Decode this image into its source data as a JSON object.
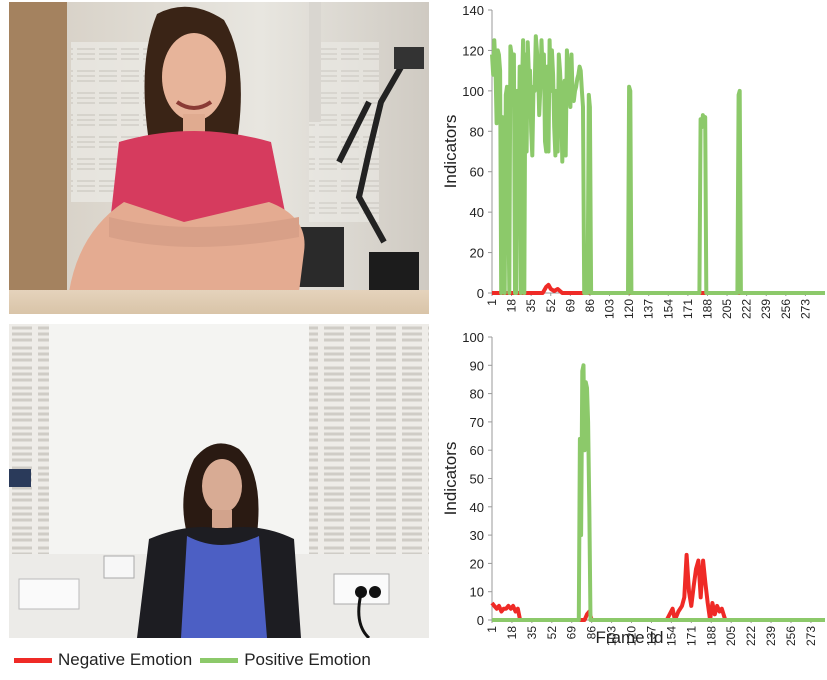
{
  "legend": {
    "negative_label": "Negative Emotion",
    "positive_label": "Positive Emotion",
    "negative_color": "#ef2a26",
    "positive_color": "#8cc96a"
  },
  "photos": [
    {
      "subject": "smiling woman in pink top, arms crossed at table"
    },
    {
      "subject": "woman in dark cardigan seated against white acoustic wall"
    }
  ],
  "chart_data": [
    {
      "type": "line",
      "title": "",
      "xlabel": "",
      "ylabel": "Indicators",
      "ylim": [
        0,
        140
      ],
      "yticks": [
        0,
        20,
        40,
        60,
        80,
        100,
        120,
        140
      ],
      "xlim": [
        1,
        290
      ],
      "xticks": [
        "1",
        "18",
        "35",
        "52",
        "69",
        "86",
        "103",
        "120",
        "137",
        "154",
        "171",
        "188",
        "205",
        "222",
        "239",
        "256",
        "273"
      ],
      "grid": false,
      "series": [
        {
          "name": "Negative Emotion",
          "color": "#ef2a26",
          "x": [
            1,
            45,
            48,
            50,
            52,
            55,
            58,
            62,
            65,
            100,
            103,
            290
          ],
          "y": [
            0,
            0,
            3,
            4,
            2,
            1,
            2,
            0,
            0,
            0,
            0,
            0
          ]
        },
        {
          "name": "Positive Emotion",
          "color": "#8cc96a",
          "x": [
            1,
            2,
            3,
            4,
            5,
            6,
            7,
            8,
            9,
            10,
            11,
            12,
            13,
            14,
            15,
            16,
            17,
            18,
            19,
            20,
            21,
            22,
            23,
            24,
            25,
            26,
            27,
            28,
            29,
            30,
            31,
            32,
            33,
            34,
            35,
            36,
            37,
            38,
            39,
            40,
            41,
            42,
            43,
            44,
            45,
            46,
            47,
            48,
            49,
            50,
            51,
            52,
            53,
            54,
            55,
            56,
            57,
            58,
            59,
            60,
            61,
            62,
            63,
            64,
            65,
            66,
            67,
            68,
            69,
            70,
            71,
            72,
            73,
            74,
            75,
            76,
            77,
            78,
            79,
            80,
            81,
            82,
            83,
            84,
            85,
            86,
            87,
            88,
            89,
            90,
            91,
            92,
            93,
            94,
            95,
            96,
            97,
            98,
            99,
            100,
            101,
            102,
            103,
            104,
            105,
            106,
            107,
            108,
            109,
            110,
            111,
            112,
            113,
            114,
            115,
            116,
            117,
            118,
            119,
            120,
            121,
            122,
            123,
            124,
            125,
            180,
            181,
            182,
            183,
            184,
            185,
            186,
            187,
            188,
            189,
            190,
            214,
            215,
            216,
            217,
            218,
            219,
            290
          ],
          "y": [
            118,
            108,
            125,
            112,
            84,
            120,
            118,
            110,
            0,
            87,
            80,
            0,
            98,
            102,
            60,
            0,
            122,
            118,
            100,
            118,
            0,
            0,
            100,
            60,
            112,
            0,
            102,
            125,
            0,
            118,
            70,
            124,
            108,
            110,
            80,
            68,
            102,
            100,
            127,
            120,
            110,
            88,
            102,
            125,
            108,
            118,
            75,
            70,
            112,
            70,
            125,
            100,
            120,
            108,
            82,
            68,
            100,
            70,
            118,
            110,
            98,
            65,
            100,
            105,
            68,
            120,
            112,
            100,
            92,
            118,
            96,
            95,
            100,
            102,
            106,
            108,
            112,
            110,
            100,
            92,
            0,
            0,
            0,
            0,
            98,
            92,
            0,
            0,
            0,
            0,
            0,
            0,
            0,
            0,
            0,
            0,
            0,
            0,
            0,
            0,
            0,
            0,
            0,
            0,
            0,
            0,
            0,
            0,
            0,
            0,
            0,
            0,
            0,
            0,
            0,
            0,
            0,
            0,
            0,
            102,
            100,
            0,
            0,
            0,
            0,
            0,
            0,
            86,
            82,
            88,
            86,
            87,
            0,
            0,
            0,
            0,
            0,
            98,
            100,
            0,
            0,
            0,
            0
          ]
        }
      ]
    },
    {
      "type": "line",
      "title": "",
      "xlabel": "Frame Id",
      "ylabel": "Indicators",
      "ylim": [
        0,
        100
      ],
      "yticks": [
        0,
        10,
        20,
        30,
        40,
        50,
        60,
        70,
        80,
        90,
        100
      ],
      "xlim": [
        1,
        285
      ],
      "xticks": [
        "1",
        "18",
        "35",
        "52",
        "69",
        "86",
        "103",
        "120",
        "137",
        "154",
        "171",
        "188",
        "205",
        "222",
        "239",
        "256",
        "273"
      ],
      "grid": false,
      "series": [
        {
          "name": "Negative Emotion",
          "color": "#ef2a26",
          "x": [
            1,
            3,
            5,
            7,
            9,
            11,
            13,
            15,
            17,
            19,
            21,
            23,
            25,
            26,
            80,
            82,
            84,
            86,
            150,
            155,
            157,
            160,
            163,
            165,
            167,
            169,
            171,
            173,
            175,
            177,
            179,
            181,
            183,
            185,
            187,
            189,
            191,
            193,
            195,
            197,
            200,
            285
          ],
          "y": [
            6,
            5,
            4,
            5,
            3,
            4,
            4,
            5,
            4,
            5,
            3,
            4,
            0,
            0,
            0,
            2,
            3,
            0,
            0,
            4,
            0,
            3,
            5,
            8,
            23,
            10,
            5,
            12,
            18,
            21,
            8,
            21,
            13,
            6,
            0,
            6,
            2,
            5,
            3,
            4,
            0,
            0
          ]
        },
        {
          "name": "Positive Emotion",
          "color": "#8cc96a",
          "x": [
            1,
            75,
            76,
            77,
            78,
            79,
            80,
            81,
            82,
            83,
            84,
            85,
            86,
            87,
            285
          ],
          "y": [
            0,
            0,
            64,
            30,
            88,
            90,
            60,
            84,
            82,
            70,
            40,
            0,
            0,
            0,
            0
          ]
        }
      ]
    }
  ]
}
